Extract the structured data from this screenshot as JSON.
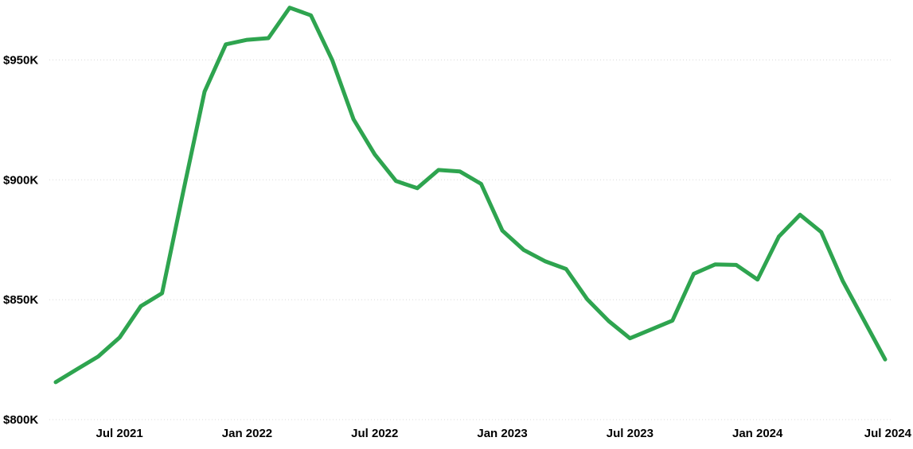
{
  "chart_data": {
    "type": "line",
    "title": "",
    "xlabel": "",
    "ylabel": "",
    "ylim": [
      800000,
      975000
    ],
    "xlim": [
      "2021-04",
      "2024-07"
    ],
    "grid": true,
    "x_ticks": [
      {
        "date": "2021-07",
        "label": "Jul 2021"
      },
      {
        "date": "2022-01",
        "label": "Jan 2022"
      },
      {
        "date": "2022-07",
        "label": "Jul 2022"
      },
      {
        "date": "2023-01",
        "label": "Jan 2023"
      },
      {
        "date": "2023-07",
        "label": "Jul 2023"
      },
      {
        "date": "2024-01",
        "label": "Jan 2024"
      },
      {
        "date": "2024-07",
        "label": "Jul 2024"
      }
    ],
    "y_ticks": [
      {
        "value": 800000,
        "label": "$800K"
      },
      {
        "value": 850000,
        "label": "$850K"
      },
      {
        "value": 900000,
        "label": "$900K"
      },
      {
        "value": 950000,
        "label": "$950K"
      }
    ],
    "series": [
      {
        "color": "#2ea44f",
        "x": [
          "2021-04",
          "2021-05",
          "2021-06",
          "2021-07",
          "2021-08",
          "2021-09",
          "2021-10",
          "2021-11",
          "2021-12",
          "2022-01",
          "2022-02",
          "2022-03",
          "2022-04",
          "2022-05",
          "2022-06",
          "2022-07",
          "2022-08",
          "2022-09",
          "2022-10",
          "2022-11",
          "2022-12",
          "2023-01",
          "2023-02",
          "2023-03",
          "2023-04",
          "2023-05",
          "2023-06",
          "2023-07",
          "2023-08",
          "2023-09",
          "2023-10",
          "2023-11",
          "2023-12",
          "2024-01",
          "2024-02",
          "2024-03",
          "2024-04",
          "2024-05",
          "2024-06",
          "2024-07"
        ],
        "values": [
          815600,
          821000,
          826300,
          834200,
          847300,
          852700,
          895200,
          936800,
          956500,
          958400,
          959100,
          971800,
          968600,
          950000,
          925300,
          910600,
          899500,
          896500,
          904100,
          903500,
          898300,
          878800,
          870800,
          866100,
          862800,
          850100,
          841100,
          833900,
          837600,
          841300,
          860800,
          864700,
          864500,
          858400,
          876300,
          885400,
          878200,
          857900,
          841500,
          825100
        ]
      }
    ]
  }
}
